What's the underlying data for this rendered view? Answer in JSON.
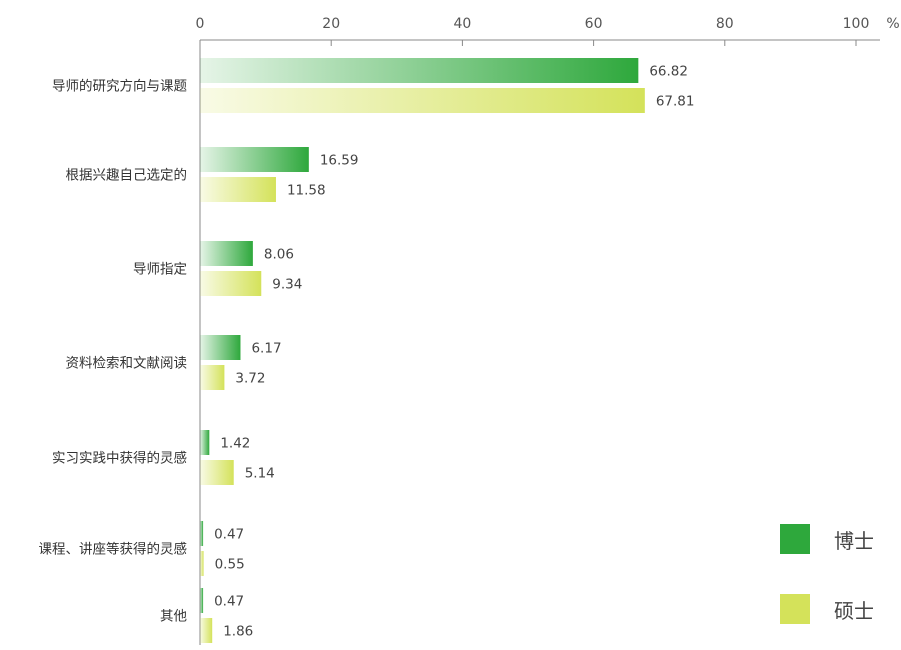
{
  "chart_data": {
    "type": "bar",
    "orientation": "horizontal",
    "unit": "%",
    "xlim": [
      0,
      100
    ],
    "ticks": [
      0,
      20,
      40,
      60,
      80,
      100
    ],
    "categories": [
      "导师的研究方向与课题",
      "根据兴趣自己选定的",
      "导师指定",
      "资料检索和文献阅读",
      "实习实践中获得的灵感",
      "课程、讲座等获得的灵感",
      "其他"
    ],
    "series": [
      {
        "name": "博士",
        "color": "#2ea83c",
        "values": [
          66.82,
          16.59,
          8.06,
          6.17,
          1.42,
          0.47,
          0.47
        ]
      },
      {
        "name": "硕士",
        "color": "#d4e25a",
        "values": [
          67.81,
          11.58,
          9.34,
          3.72,
          5.14,
          0.55,
          1.86
        ]
      }
    ],
    "value_labels": [
      [
        "66.82",
        "16.59",
        "8.06",
        "6.17",
        "1.42",
        "0.47",
        "0.47"
      ],
      [
        "67.81",
        "11.58",
        "9.34",
        "3.72",
        "5.14",
        "0.55",
        "1.86"
      ]
    ],
    "tick_labels": [
      "0",
      "20",
      "40",
      "60",
      "80",
      "100"
    ],
    "legend_position": "bottom-right",
    "grid": false
  }
}
